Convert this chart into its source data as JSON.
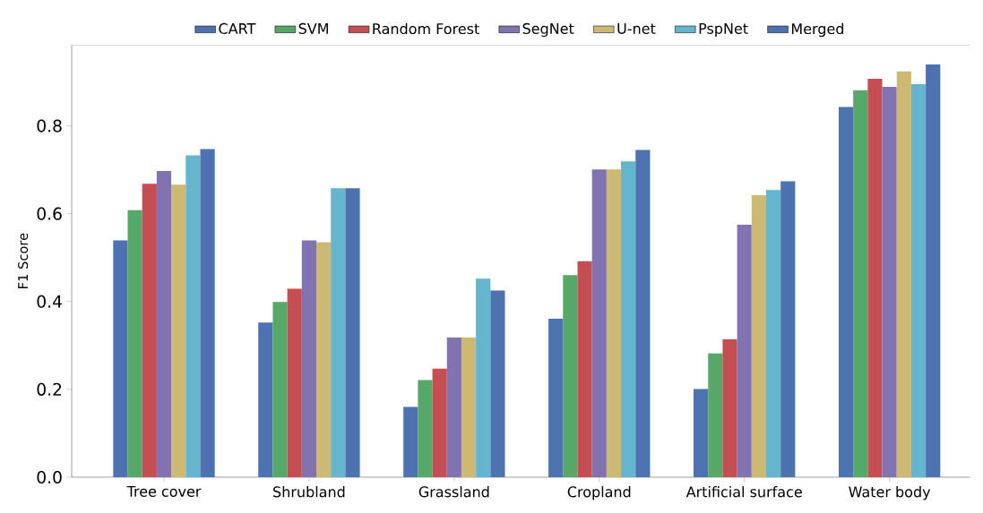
{
  "chart_data": {
    "type": "bar",
    "ylabel": "F1 Score",
    "categories": [
      "Tree cover",
      "Shrubland",
      "Grassland",
      "Cropland",
      "Artificial surface",
      "Water body"
    ],
    "series": [
      {
        "name": "CART",
        "color": "#4c72b0",
        "values": [
          0.539,
          0.352,
          0.16,
          0.361,
          0.201,
          0.843
        ]
      },
      {
        "name": "SVM",
        "color": "#55a868",
        "values": [
          0.608,
          0.399,
          0.221,
          0.46,
          0.282,
          0.881
        ]
      },
      {
        "name": "Random Forest",
        "color": "#c44e52",
        "values": [
          0.668,
          0.429,
          0.247,
          0.492,
          0.314,
          0.907
        ]
      },
      {
        "name": "SegNet",
        "color": "#8172b2",
        "values": [
          0.697,
          0.539,
          0.318,
          0.701,
          0.575,
          0.889
        ]
      },
      {
        "name": "U-net",
        "color": "#ccb974",
        "values": [
          0.666,
          0.535,
          0.318,
          0.701,
          0.642,
          0.924
        ]
      },
      {
        "name": "PspNet",
        "color": "#64b5cd",
        "values": [
          0.733,
          0.658,
          0.452,
          0.719,
          0.654,
          0.895
        ]
      },
      {
        "name": "Merged",
        "color": "#4c72b0",
        "values": [
          0.747,
          0.658,
          0.425,
          0.745,
          0.674,
          0.94
        ]
      }
    ],
    "ylim": [
      0,
      0.984
    ],
    "yticks": [
      {
        "value": 0,
        "label": "0.0"
      },
      0.2,
      0.4,
      0.6,
      0.8
    ],
    "legend": "top",
    "grid": false
  }
}
